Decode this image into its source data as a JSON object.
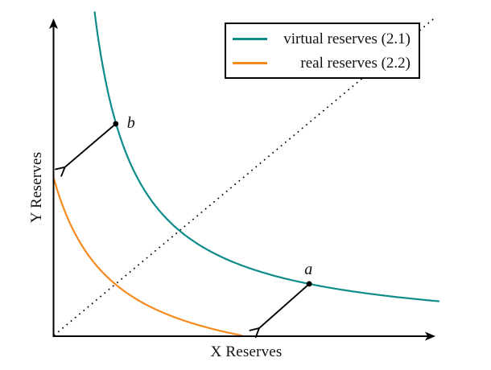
{
  "chart_data": {
    "type": "line",
    "title": "",
    "xlabel": "X Reserves",
    "ylabel": "Y Reserves",
    "xlim": [
      0,
      10
    ],
    "ylim": [
      0,
      10
    ],
    "ticks_visible": false,
    "grid": false,
    "legend_position": "upper right",
    "series": [
      {
        "name": "virtual reserves (2.1)",
        "color": "#0e8b8b",
        "curve_type": "hyperbola",
        "equation": "x * y = k",
        "k": 10.7,
        "axis_shift": 0,
        "x_draw_range": [
          1.06,
          10.02
        ],
        "sample_points": [
          [
            1.06,
            10.09
          ],
          [
            1.61,
            6.61
          ],
          [
            2.5,
            4.28
          ],
          [
            3.27,
            3.27
          ],
          [
            5.0,
            2.14
          ],
          [
            6.65,
            1.61
          ],
          [
            8.5,
            1.26
          ],
          [
            10.0,
            1.07
          ]
        ]
      },
      {
        "name": "real reserves (2.2)",
        "color": "#f58a1e",
        "curve_type": "shifted-hyperbola",
        "equation": "(x + c) * (y + c) = k",
        "k": 9.7,
        "axis_shift": 1.515,
        "x_draw_range": [
          0,
          4.887
        ],
        "sample_points": [
          [
            0,
            4.89
          ],
          [
            0.5,
            3.3
          ],
          [
            1.0,
            2.34
          ],
          [
            1.61,
            1.59
          ],
          [
            2.5,
            0.9
          ],
          [
            3.5,
            0.42
          ],
          [
            4.887,
            0
          ]
        ]
      }
    ],
    "reference_line": {
      "name": "diagonal",
      "style": "dotted",
      "color": "#000000",
      "equation": "y = x",
      "from": [
        0,
        0
      ],
      "to": [
        9.95,
        9.95
      ]
    },
    "points": [
      {
        "label": "a",
        "x": 6.65,
        "y": 1.61,
        "label_position": "above"
      },
      {
        "label": "b",
        "x": 1.61,
        "y": 6.61,
        "label_position": "right"
      }
    ],
    "arrows": [
      {
        "from_point": "a",
        "to": [
          5.33,
          0.21
        ]
      },
      {
        "from_point": "b",
        "to": [
          0.27,
          5.24
        ]
      }
    ]
  },
  "legend": {
    "items": [
      {
        "label": "virtual reserves (2.1)",
        "color": "#0e8b8b"
      },
      {
        "label": "real reserves (2.2)",
        "color": "#f58a1e"
      }
    ]
  }
}
